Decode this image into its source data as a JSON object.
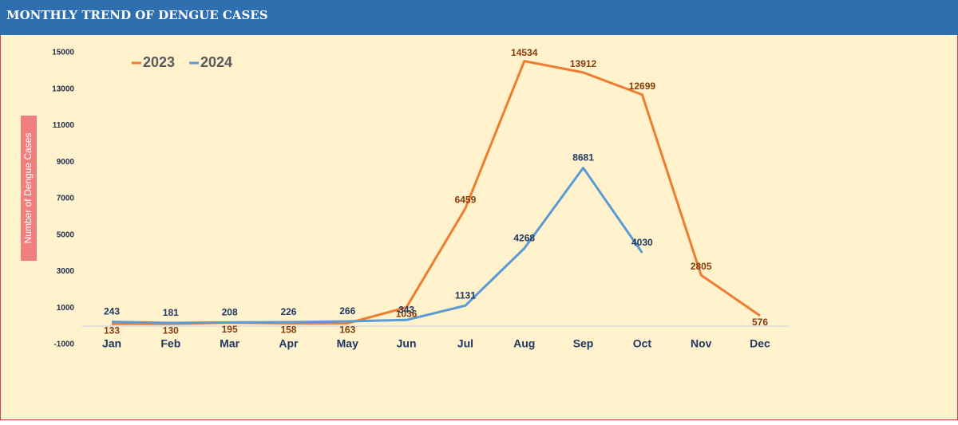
{
  "chart_data": {
    "type": "line",
    "title": "MONTHLY TREND OF DENGUE CASES",
    "y_label": "Number of Dengue Cases",
    "categories": [
      "Jan",
      "Feb",
      "Mar",
      "Apr",
      "May",
      "Jun",
      "Jul",
      "Aug",
      "Sep",
      "Oct",
      "Nov",
      "Dec"
    ],
    "series": [
      {
        "name": "2023",
        "color": "#ed7d31",
        "values": [
          133,
          130,
          195,
          158,
          163,
          1036,
          6459,
          14534,
          13912,
          12699,
          2805,
          576
        ]
      },
      {
        "name": "2024",
        "color": "#5b9bd5",
        "values": [
          243,
          181,
          208,
          226,
          266,
          343,
          1131,
          4268,
          8681,
          4030,
          null,
          null
        ]
      }
    ],
    "ylim": [
      -1000,
      15000
    ],
    "yticks": [
      -1000,
      1000,
      3000,
      5000,
      7000,
      9000,
      11000,
      13000,
      15000
    ],
    "legend": "top-left"
  }
}
